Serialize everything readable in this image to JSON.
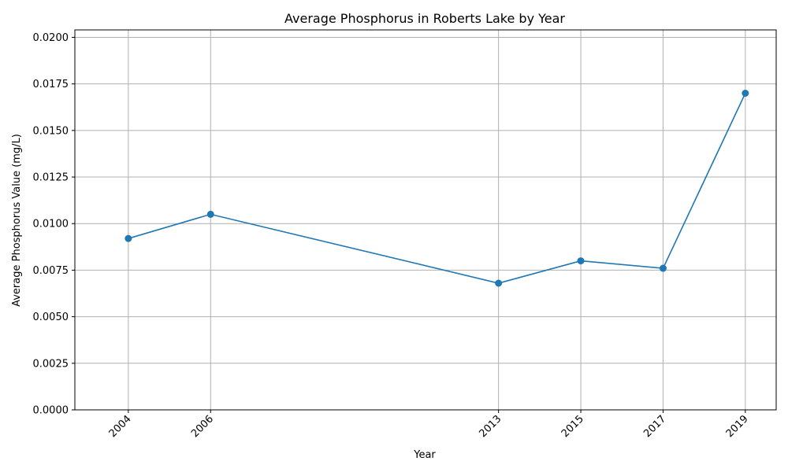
{
  "chart_data": {
    "type": "line",
    "title": "Average Phosphorus in Roberts Lake by Year",
    "xlabel": "Year",
    "ylabel": "Average Phosphorus Value (mg/L)",
    "x": [
      2004,
      2006,
      2013,
      2015,
      2017,
      2019
    ],
    "x_tick_labels": [
      "2004",
      "2006",
      "2013",
      "2015",
      "2017",
      "2019"
    ],
    "series": [
      {
        "values": [
          0.0092,
          0.0105,
          0.0068,
          0.008,
          0.0076,
          0.017
        ]
      }
    ],
    "ylim": [
      0,
      0.0204
    ],
    "xlim": [
      2002.7,
      2019.75
    ],
    "y_ticks": [
      0.0,
      0.0025,
      0.005,
      0.0075,
      0.01,
      0.0125,
      0.015,
      0.0175,
      0.02
    ],
    "y_tick_labels": [
      "0.0000",
      "0.0025",
      "0.0050",
      "0.0075",
      "0.0100",
      "0.0125",
      "0.0150",
      "0.0175",
      "0.0200"
    ],
    "grid": true,
    "line_color": "#1f77b4",
    "marker": "circle"
  }
}
